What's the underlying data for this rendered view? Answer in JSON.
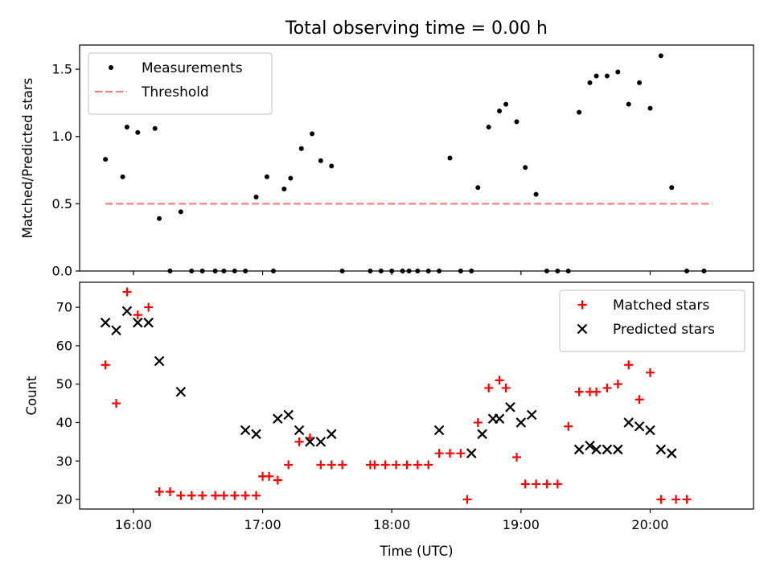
{
  "title": "Total observing time = 0.00 h",
  "chart_data": [
    {
      "type": "scatter",
      "ylabel": "Matched/Predicted stars",
      "ylim": [
        0,
        1.68
      ],
      "yticks": [
        0.0,
        0.5,
        1.0,
        1.5
      ],
      "ytick_labels": [
        "0.0",
        "0.5",
        "1.0",
        "1.5"
      ],
      "xlim": [
        "15:35",
        "20:48"
      ],
      "legend": {
        "position": "upper left",
        "entries": [
          "Measurements",
          "Threshold"
        ]
      },
      "series": [
        {
          "name": "Measurements",
          "color": "#000000",
          "marker": "dot",
          "points": [
            [
              "15:47",
              0.83
            ],
            [
              "15:55",
              0.7
            ],
            [
              "15:57",
              1.07
            ],
            [
              "16:02",
              1.03
            ],
            [
              "16:10",
              1.06
            ],
            [
              "16:12",
              0.39
            ],
            [
              "16:17",
              0.0
            ],
            [
              "16:22",
              0.44
            ],
            [
              "16:27",
              0.0
            ],
            [
              "16:32",
              0.0
            ],
            [
              "16:38",
              0.0
            ],
            [
              "16:42",
              0.0
            ],
            [
              "16:47",
              0.0
            ],
            [
              "16:52",
              0.0
            ],
            [
              "16:57",
              0.55
            ],
            [
              "17:02",
              0.7
            ],
            [
              "17:05",
              0.0
            ],
            [
              "17:10",
              0.61
            ],
            [
              "17:13",
              0.69
            ],
            [
              "17:18",
              0.91
            ],
            [
              "17:23",
              1.02
            ],
            [
              "17:27",
              0.82
            ],
            [
              "17:32",
              0.78
            ],
            [
              "17:37",
              0.0
            ],
            [
              "17:50",
              0.0
            ],
            [
              "17:55",
              0.0
            ],
            [
              "18:00",
              0.0
            ],
            [
              "18:05",
              0.0
            ],
            [
              "18:08",
              0.0
            ],
            [
              "18:12",
              0.0
            ],
            [
              "18:17",
              0.0
            ],
            [
              "18:22",
              0.0
            ],
            [
              "18:27",
              0.84
            ],
            [
              "18:32",
              0.0
            ],
            [
              "18:37",
              0.0
            ],
            [
              "18:40",
              0.62
            ],
            [
              "18:45",
              1.07
            ],
            [
              "18:50",
              1.19
            ],
            [
              "18:53",
              1.24
            ],
            [
              "18:58",
              1.11
            ],
            [
              "19:02",
              0.77
            ],
            [
              "19:07",
              0.57
            ],
            [
              "19:12",
              0.0
            ],
            [
              "19:17",
              0.0
            ],
            [
              "19:22",
              0.0
            ],
            [
              "19:27",
              1.18
            ],
            [
              "19:32",
              1.4
            ],
            [
              "19:35",
              1.45
            ],
            [
              "19:40",
              1.45
            ],
            [
              "19:45",
              1.48
            ],
            [
              "19:50",
              1.24
            ],
            [
              "19:55",
              1.4
            ],
            [
              "20:00",
              1.21
            ],
            [
              "20:05",
              1.6
            ],
            [
              "20:10",
              0.62
            ],
            [
              "20:17",
              0.0
            ],
            [
              "20:25",
              0.0
            ]
          ]
        },
        {
          "name": "Threshold",
          "color": "#ff7f7f",
          "style": "dashed",
          "x": [
            "15:47",
            "20:29"
          ],
          "y": [
            0.5,
            0.5
          ]
        }
      ]
    },
    {
      "type": "scatter",
      "ylabel": "Count",
      "xlabel": "Time (UTC)",
      "ylim": [
        17.5,
        76.5
      ],
      "yticks": [
        20,
        30,
        40,
        50,
        60,
        70
      ],
      "ytick_labels": [
        "20",
        "30",
        "40",
        "50",
        "60",
        "70"
      ],
      "xlim": [
        "15:35",
        "20:48"
      ],
      "xticks": [
        "16:00",
        "17:00",
        "18:00",
        "19:00",
        "20:00"
      ],
      "xtick_labels": [
        "16:00",
        "17:00",
        "18:00",
        "19:00",
        "20:00"
      ],
      "legend": {
        "position": "upper right",
        "entries": [
          "Matched stars",
          "Predicted stars"
        ]
      },
      "series": [
        {
          "name": "Matched stars",
          "color": "#ff0000",
          "marker": "plus",
          "points": [
            [
              "15:47",
              55
            ],
            [
              "15:52",
              45
            ],
            [
              "15:57",
              74
            ],
            [
              "16:02",
              68
            ],
            [
              "16:07",
              70
            ],
            [
              "16:12",
              22
            ],
            [
              "16:17",
              22
            ],
            [
              "16:22",
              21
            ],
            [
              "16:27",
              21
            ],
            [
              "16:32",
              21
            ],
            [
              "16:38",
              21
            ],
            [
              "16:42",
              21
            ],
            [
              "16:47",
              21
            ],
            [
              "16:52",
              21
            ],
            [
              "16:57",
              21
            ],
            [
              "17:00",
              26
            ],
            [
              "17:03",
              26
            ],
            [
              "17:07",
              25
            ],
            [
              "17:12",
              29
            ],
            [
              "17:17",
              35
            ],
            [
              "17:22",
              36
            ],
            [
              "17:27",
              29
            ],
            [
              "17:32",
              29
            ],
            [
              "17:37",
              29
            ],
            [
              "17:50",
              29
            ],
            [
              "17:52",
              29
            ],
            [
              "17:57",
              29
            ],
            [
              "18:02",
              29
            ],
            [
              "18:07",
              29
            ],
            [
              "18:12",
              29
            ],
            [
              "18:17",
              29
            ],
            [
              "18:22",
              32
            ],
            [
              "18:27",
              32
            ],
            [
              "18:32",
              32
            ],
            [
              "18:35",
              20
            ],
            [
              "18:40",
              40
            ],
            [
              "18:45",
              49
            ],
            [
              "18:50",
              51
            ],
            [
              "18:53",
              49
            ],
            [
              "18:58",
              31
            ],
            [
              "19:02",
              24
            ],
            [
              "19:07",
              24
            ],
            [
              "19:12",
              24
            ],
            [
              "19:17",
              24
            ],
            [
              "19:22",
              39
            ],
            [
              "19:27",
              48
            ],
            [
              "19:32",
              48
            ],
            [
              "19:35",
              48
            ],
            [
              "19:40",
              49
            ],
            [
              "19:45",
              50
            ],
            [
              "19:50",
              55
            ],
            [
              "19:55",
              46
            ],
            [
              "20:00",
              53
            ],
            [
              "20:05",
              20
            ],
            [
              "20:12",
              20
            ],
            [
              "20:17",
              20
            ]
          ]
        },
        {
          "name": "Predicted stars",
          "color": "#000000",
          "marker": "x",
          "points": [
            [
              "15:47",
              66
            ],
            [
              "15:52",
              64
            ],
            [
              "15:57",
              69
            ],
            [
              "16:02",
              66
            ],
            [
              "16:07",
              66
            ],
            [
              "16:12",
              56
            ],
            [
              "16:22",
              48
            ],
            [
              "16:52",
              38
            ],
            [
              "16:57",
              37
            ],
            [
              "17:07",
              41
            ],
            [
              "17:12",
              42
            ],
            [
              "17:17",
              38
            ],
            [
              "17:22",
              35
            ],
            [
              "17:27",
              35
            ],
            [
              "17:32",
              37
            ],
            [
              "18:22",
              38
            ],
            [
              "18:37",
              32
            ],
            [
              "18:42",
              37
            ],
            [
              "18:47",
              41
            ],
            [
              "18:50",
              41
            ],
            [
              "18:55",
              44
            ],
            [
              "19:00",
              40
            ],
            [
              "19:05",
              42
            ],
            [
              "19:27",
              33
            ],
            [
              "19:32",
              34
            ],
            [
              "19:35",
              33
            ],
            [
              "19:40",
              33
            ],
            [
              "19:45",
              33
            ],
            [
              "19:50",
              40
            ],
            [
              "19:55",
              39
            ],
            [
              "20:00",
              38
            ],
            [
              "20:05",
              33
            ],
            [
              "20:10",
              32
            ]
          ]
        }
      ]
    }
  ]
}
